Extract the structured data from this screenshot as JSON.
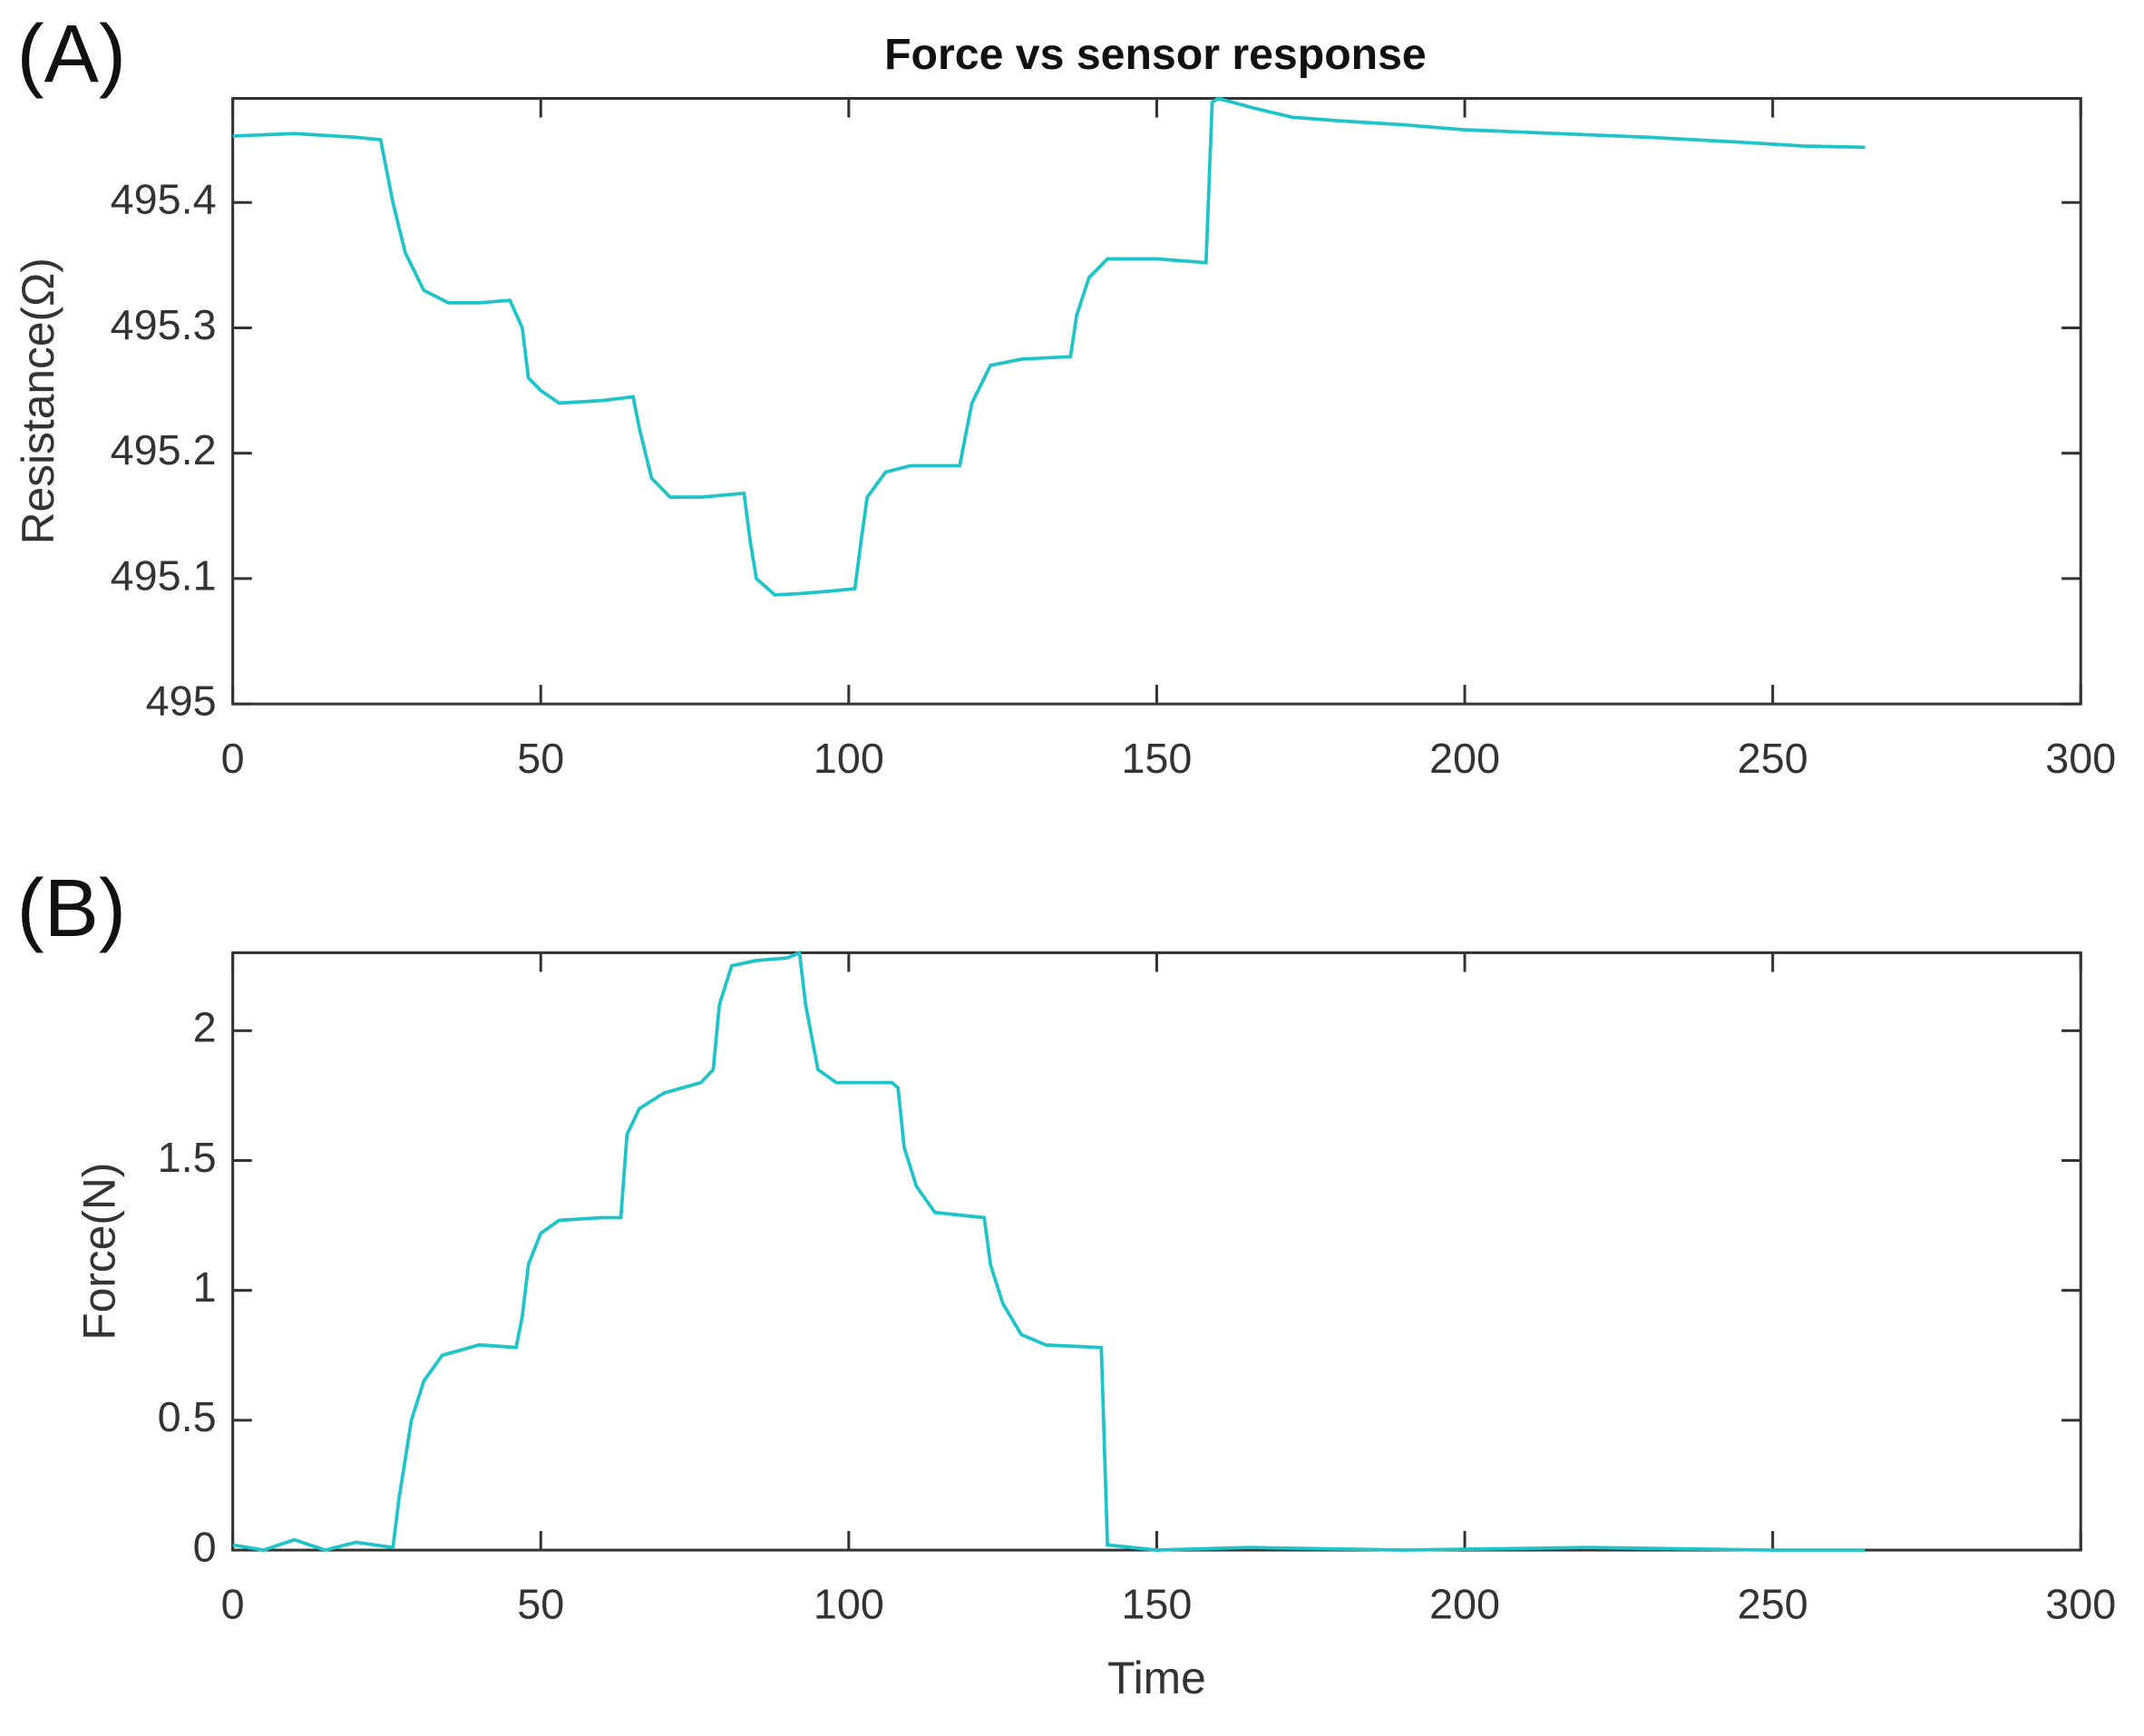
{
  "chart_data": [
    {
      "type": "line",
      "panel_label": "(A)",
      "title": "Force vs sensor response",
      "ylabel": "Resistance(Ω)",
      "x": [
        0,
        10,
        20,
        24,
        26,
        28,
        31,
        35,
        40,
        45,
        47,
        48,
        50,
        53,
        60,
        65,
        66,
        68,
        71,
        76,
        83,
        84,
        85,
        88,
        92,
        97,
        101,
        102,
        103,
        106,
        110,
        118,
        120,
        123,
        128,
        136,
        137,
        139,
        142,
        150,
        158,
        159,
        160,
        166,
        172,
        180,
        190,
        200,
        215,
        230,
        245,
        255,
        265
      ],
      "series": [
        {
          "name": "Resistance",
          "color": "#1fc4c8",
          "values": [
            495.453,
            495.455,
            495.452,
            495.45,
            495.4,
            495.36,
            495.33,
            495.32,
            495.32,
            495.322,
            495.3,
            495.26,
            495.25,
            495.24,
            495.242,
            495.245,
            495.22,
            495.18,
            495.165,
            495.165,
            495.168,
            495.13,
            495.1,
            495.087,
            495.088,
            495.09,
            495.092,
            495.13,
            495.165,
            495.185,
            495.19,
            495.19,
            495.24,
            495.27,
            495.275,
            495.277,
            495.31,
            495.34,
            495.355,
            495.355,
            495.352,
            495.48,
            495.483,
            495.475,
            495.468,
            495.465,
            495.462,
            495.458,
            495.455,
            495.452,
            495.448,
            495.445,
            495.444
          ]
        }
      ],
      "xlim": [
        0,
        300
      ],
      "xticks": [
        0,
        50,
        100,
        150,
        200,
        250,
        300
      ],
      "ylim": [
        495,
        495.483
      ],
      "yticks": [
        495,
        495.1,
        495.2,
        495.3,
        495.4
      ]
    },
    {
      "type": "line",
      "panel_label": "(B)",
      "xlabel": "Time",
      "ylabel": "Force(N)",
      "x": [
        0,
        5,
        10,
        15,
        20,
        26,
        27,
        29,
        31,
        34,
        40,
        46,
        47,
        48,
        50,
        53,
        60,
        63,
        64,
        66,
        70,
        76,
        78,
        79,
        81,
        85,
        90,
        92,
        93,
        95,
        98,
        107,
        108,
        109,
        111,
        114,
        122,
        123,
        125,
        128,
        132,
        141,
        142,
        150,
        165,
        190,
        220,
        250,
        265
      ],
      "series": [
        {
          "name": "Force",
          "color": "#1fc4c8",
          "values": [
            0.02,
            0,
            0.04,
            0,
            0.03,
            0.01,
            0.2,
            0.5,
            0.65,
            0.75,
            0.79,
            0.78,
            0.9,
            1.1,
            1.22,
            1.27,
            1.28,
            1.28,
            1.6,
            1.7,
            1.76,
            1.8,
            1.85,
            2.1,
            2.25,
            2.27,
            2.28,
            2.3,
            2.1,
            1.85,
            1.8,
            1.8,
            1.78,
            1.55,
            1.4,
            1.3,
            1.28,
            1.1,
            0.95,
            0.83,
            0.79,
            0.78,
            0.02,
            0,
            0.01,
            0,
            0.01,
            0,
            0
          ]
        }
      ],
      "xlim": [
        0,
        300
      ],
      "xticks": [
        0,
        50,
        100,
        150,
        200,
        250,
        300
      ],
      "ylim": [
        0,
        2.3
      ],
      "yticks": [
        0,
        0.5,
        1,
        1.5,
        2
      ]
    }
  ]
}
